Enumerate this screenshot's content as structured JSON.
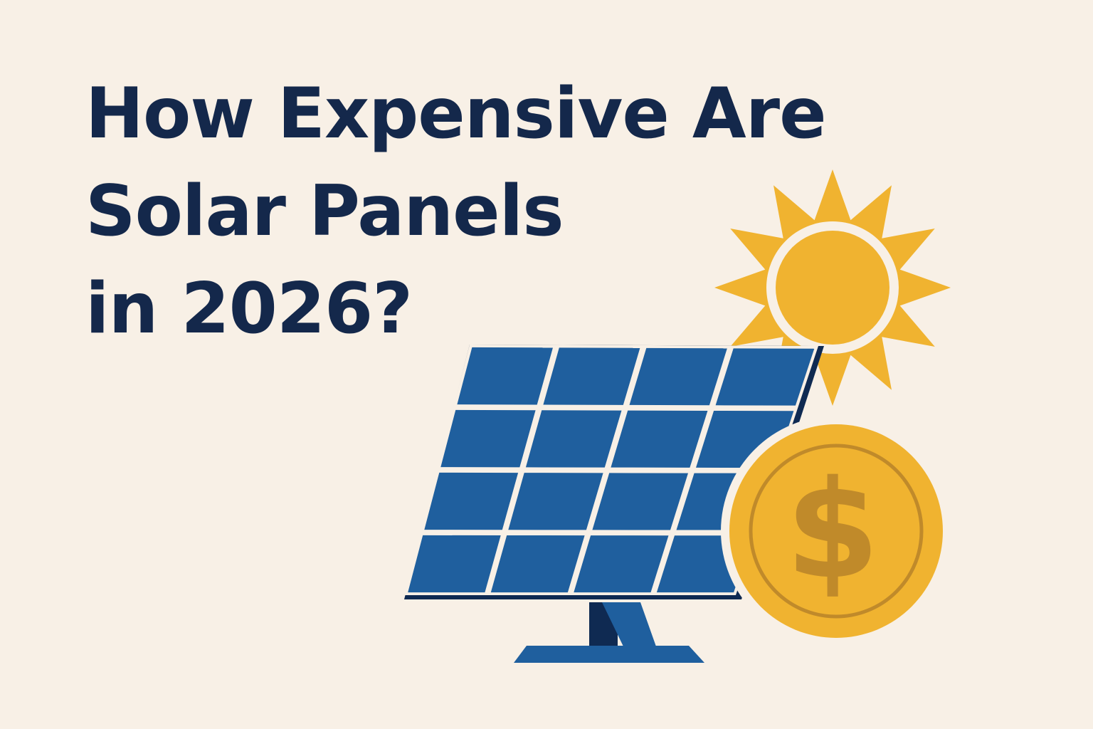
{
  "headline": {
    "line1": "How Expensive Are",
    "line2": "Solar Panels",
    "line3": "in 2026?"
  },
  "coin": {
    "symbol": "$"
  },
  "colors": {
    "background": "#f8f0e6",
    "headline": "#14284b",
    "panel_blue": "#1f5f9e",
    "panel_frame": "#0f2a52",
    "sun_yellow": "#f0b330",
    "coin_yellow": "#f0b330",
    "dollar_brown": "#c08a2a"
  },
  "icons": [
    "sun-icon",
    "solar-panel-icon",
    "dollar-coin-icon"
  ]
}
